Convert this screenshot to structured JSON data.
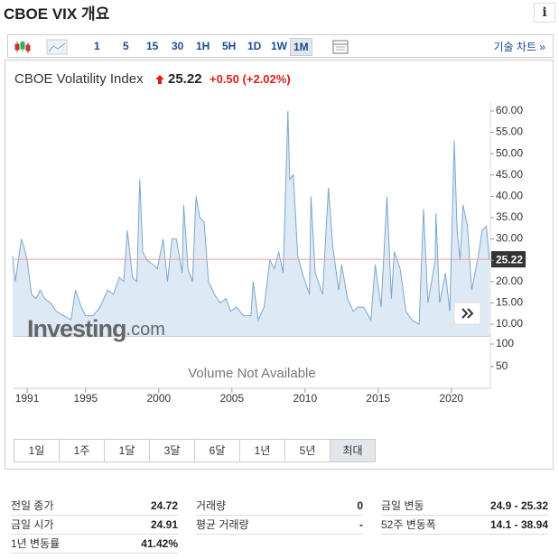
{
  "header": {
    "title": "CBOE VIX 개요",
    "info": "i"
  },
  "toolbar": {
    "intervals": [
      "1",
      "5",
      "15",
      "30",
      "1H",
      "5H",
      "1D",
      "1W",
      "1M"
    ],
    "selected": 8,
    "technical": "기술 차트 »"
  },
  "quote": {
    "name": "CBOE Volatility Index",
    "change": "+0.50",
    "change_pct": "(+2.02%)"
  },
  "ranges": {
    "items": [
      "1일",
      "1주",
      "1달",
      "3달",
      "6달",
      "1년",
      "5년",
      "최대"
    ],
    "selected": 7
  },
  "chart_data": {
    "type": "area",
    "color": "#7ba7cc",
    "fill": "#dde9f5",
    "last_price": 25.22,
    "last_color": "#e8a0a0",
    "watermark": [
      "Investing",
      ".com"
    ],
    "volume_note": "Volume Not Available",
    "x": [
      1990.0,
      1990.2,
      1990.6,
      1990.8,
      1991.0,
      1991.3,
      1991.6,
      1991.9,
      1992.2,
      1992.6,
      1993.0,
      1993.5,
      1994.0,
      1994.3,
      1994.7,
      1995.0,
      1995.5,
      1996.0,
      1996.5,
      1996.9,
      1997.3,
      1997.6,
      1997.85,
      1998.2,
      1998.5,
      1998.7,
      1998.9,
      1999.2,
      1999.6,
      1999.9,
      2000.3,
      2000.6,
      2000.9,
      2001.2,
      2001.6,
      2001.7,
      2002.0,
      2002.3,
      2002.55,
      2002.8,
      2003.1,
      2003.4,
      2003.8,
      2004.2,
      2004.6,
      2004.9,
      2005.3,
      2005.8,
      2006.3,
      2006.45,
      2006.8,
      2007.2,
      2007.6,
      2007.9,
      2008.2,
      2008.5,
      2008.83,
      2008.95,
      2009.2,
      2009.5,
      2009.9,
      2010.3,
      2010.4,
      2010.7,
      2011.2,
      2011.6,
      2011.9,
      2012.3,
      2012.5,
      2012.9,
      2013.3,
      2013.6,
      2014.0,
      2014.5,
      2014.8,
      2015.2,
      2015.6,
      2015.9,
      2016.1,
      2016.5,
      2016.9,
      2017.3,
      2017.8,
      2018.1,
      2018.4,
      2018.9,
      2018.95,
      2019.2,
      2019.6,
      2019.9,
      2020.2,
      2020.4,
      2020.6,
      2020.8,
      2021.1,
      2021.4,
      2021.9,
      2022.1,
      2022.4,
      2022.6
    ],
    "values": [
      26,
      20,
      30,
      28,
      25,
      17,
      16,
      18,
      16,
      15,
      13,
      12,
      11,
      18,
      14,
      12,
      12,
      14,
      18,
      17,
      21,
      20,
      32,
      21,
      20,
      44,
      27,
      25,
      24,
      23,
      30,
      20,
      30,
      30,
      22,
      38,
      23,
      20,
      40,
      35,
      34,
      20,
      17,
      15,
      16,
      13,
      14,
      12,
      12,
      20,
      11,
      14,
      25,
      23,
      27,
      22,
      60,
      44,
      45,
      26,
      21,
      17,
      40,
      22,
      17,
      42,
      28,
      18,
      24,
      16,
      13,
      14,
      14,
      11,
      24,
      14,
      40,
      16,
      27,
      23,
      13,
      11,
      10,
      37,
      15,
      25,
      36,
      15,
      22,
      13,
      53,
      32,
      25,
      38,
      33,
      18,
      27,
      32,
      33,
      25.22
    ],
    "xlim": [
      1990.07,
      2022.67
    ],
    "ylim": [
      7.25,
      62.1
    ],
    "xticks": [
      1991,
      1995,
      2000,
      2005,
      2010,
      2015,
      2020
    ],
    "yticks": [
      10,
      15,
      20,
      25,
      30,
      35,
      40,
      45,
      {
        "value": 50,
        "label": "50.00"
      },
      {
        "value": 55,
        "label": "55.00"
      },
      {
        "value": 60,
        "label": "60.00"
      }
    ],
    "volume_ylim": [
      0,
      118
    ],
    "volume_yticks": [
      100,
      50
    ],
    "grid": false
  },
  "stats": {
    "rows": [
      [
        [
          "전일 종가",
          "24.72"
        ],
        [
          "거래량",
          "0"
        ],
        [
          "금일 변동",
          "24.9 - 25.32"
        ]
      ],
      [
        [
          "금일 시가",
          "24.91"
        ],
        [
          "평균 거래량",
          "-"
        ],
        [
          "52주 변동폭",
          "14.1 - 38.94"
        ]
      ],
      [
        [
          "1년 변동률",
          "41.42%"
        ]
      ]
    ]
  }
}
